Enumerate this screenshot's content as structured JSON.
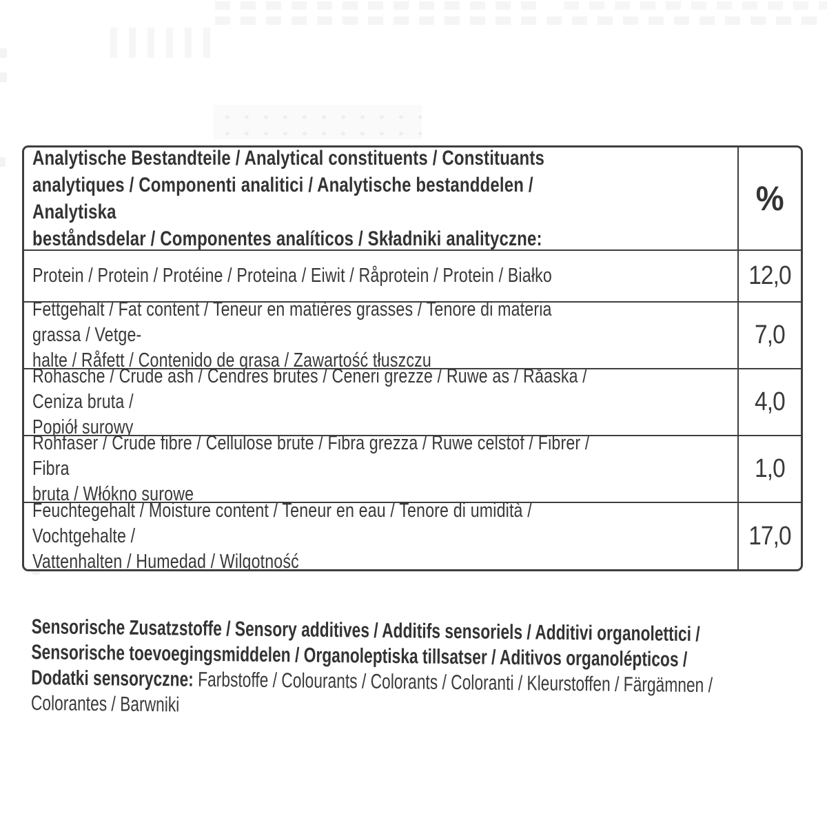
{
  "label": {
    "table": {
      "header": {
        "title": "Analytische Bestandteile / Analytical constituents / Constituants\nanalytiques / Componenti analitici / Analytische bestanddelen / Analytiska\nbeståndsdelar / Componentes analíticos / Składniki analityczne:",
        "unit": "%"
      },
      "rows": [
        {
          "label": "Protein / Protein / Protéine / Proteina / Eiwit / Råprotein / Protein / Białko",
          "value": "12,0"
        },
        {
          "label": "Fettgehalt / Fat content / Teneur en matières grasses / Tenore di materia grassa / Vetge-\nhalte / Råfett / Contenido de grasa / Zawartość tłuszczu",
          "value": "7,0"
        },
        {
          "label": "Rohasche / Crude ash / Cendres brutes / Ceneri grezze / Ruwe as / Råaska / Ceniza bruta /\nPopiół surowy",
          "value": "4,0"
        },
        {
          "label": "Rohfaser / Crude fibre / Cellulose brute / Fibra grezza / Ruwe celstof / Fibrer / Fibra\nbruta / Włókno surowe",
          "value": "1,0"
        },
        {
          "label": "Feuchtegehalt / Moisture content / Teneur en eau / Tenore di umidità / Vochtgehalte /\nVattenhalten / Humedad / Wilgotność",
          "value": "17,0"
        }
      ]
    },
    "sensory_additives": {
      "heading": "Sensorische Zusatzstoffe / Sensory additives / Additifs sensoriels / Additivi organolettici /\nSensorische toevoegingsmiddelen / Organoleptiska tillsatser / Aditivos organolépticos /\nDodatki sensoryczne:",
      "content": " Farbstoffe / Colourants / Colorants / Coloranti / Kleurstoffen / Färgämnen /\nColorantes / Barwniki"
    },
    "colors": {
      "text": "#383838",
      "border": "#3e3e3e",
      "background": "#ffffff"
    }
  }
}
